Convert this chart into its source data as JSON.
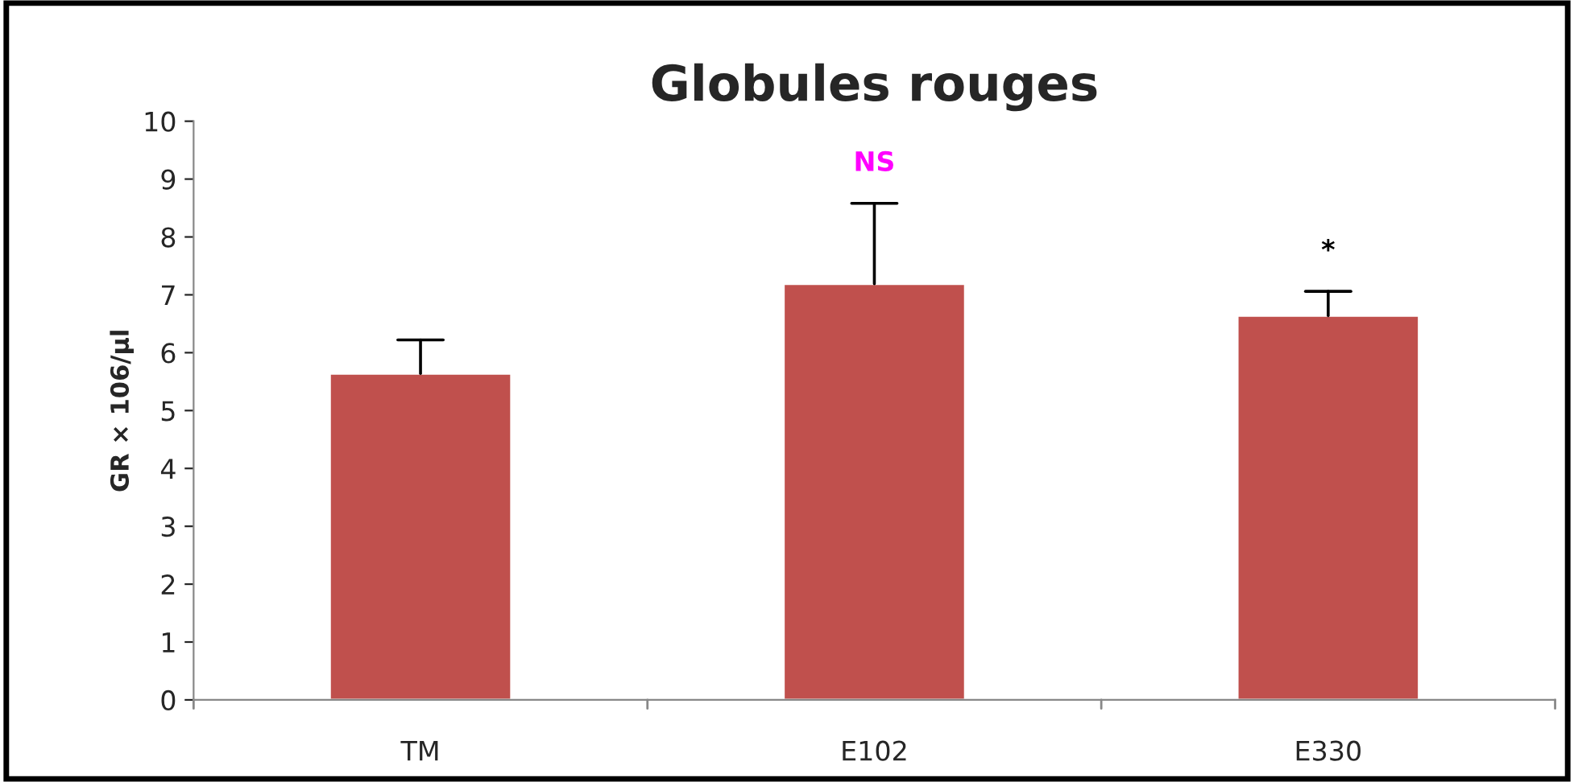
{
  "chart_data": {
    "type": "bar",
    "title": "Globules rouges",
    "ylabel": "GR × 106/µl",
    "categories": [
      "TM",
      "E102",
      "E330"
    ],
    "values": [
      5.64,
      7.19,
      6.64
    ],
    "errors": [
      [
        5.64,
        6.22
      ],
      [
        7.19,
        8.58
      ],
      [
        6.64,
        7.06
      ]
    ],
    "color": "#c0504d",
    "ylim": [
      0,
      10
    ],
    "yticks": [
      0,
      1,
      2,
      3,
      4,
      5,
      6,
      7,
      8,
      9,
      10
    ],
    "grid": false,
    "annotations": [
      {
        "text": "NS",
        "x": "E102",
        "y": 8.58
      },
      {
        "text": "*",
        "x": "E330",
        "y": 7.06
      }
    ]
  }
}
